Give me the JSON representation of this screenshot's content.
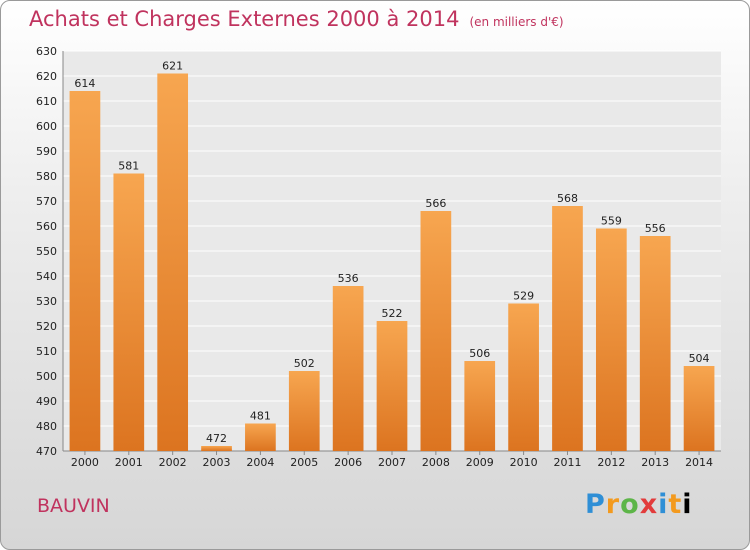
{
  "chart_data": {
    "type": "bar",
    "title": "Achats et Charges Externes 2000 à 2014",
    "subtitle": "(en milliers d'€)",
    "categories": [
      "2000",
      "2001",
      "2002",
      "2003",
      "2004",
      "2005",
      "2006",
      "2007",
      "2008",
      "2009",
      "2010",
      "2011",
      "2012",
      "2013",
      "2014"
    ],
    "values": [
      614,
      581,
      621,
      472,
      481,
      502,
      536,
      522,
      566,
      506,
      529,
      568,
      559,
      556,
      504
    ],
    "ylim": [
      470,
      630
    ],
    "ytick_step": 10,
    "grid": true,
    "bar_color": "#f29a3d"
  },
  "footer": {
    "town": "BAUVIN",
    "logo_letters": [
      "P",
      "r",
      "o",
      "x",
      "i",
      "t",
      "i"
    ]
  }
}
